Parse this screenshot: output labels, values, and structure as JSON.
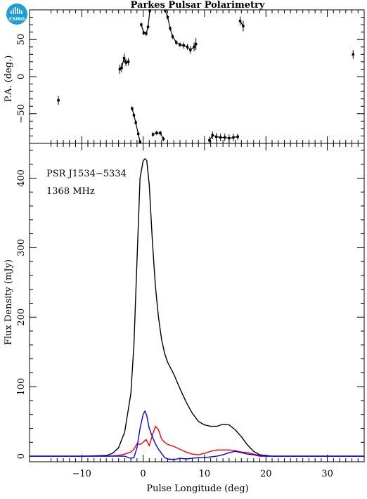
{
  "logo": {
    "text": "CSIRO",
    "color": "#1a9fd8"
  },
  "colors": {
    "total": "#000000",
    "linear": "#ff0000",
    "circular": "#0000ff"
  },
  "chart_data": [
    {
      "type": "scatter",
      "title": "Parkes Pulsar Polarimetry",
      "ylabel": "P.A. (deg.)",
      "xlim": [
        -18.5,
        36
      ],
      "ylim": [
        -90,
        90
      ],
      "xticks": [
        -10,
        0,
        10,
        20,
        30
      ],
      "yticks": [
        -50,
        0,
        50
      ],
      "grid": false,
      "points": [
        {
          "x": -13.8,
          "y": -32,
          "err": 6
        },
        {
          "x": -3.8,
          "y": 10,
          "err": 6
        },
        {
          "x": -3.5,
          "y": 12,
          "err": 6
        },
        {
          "x": -3.1,
          "y": 25,
          "err": 6
        },
        {
          "x": -2.8,
          "y": 19,
          "err": 5
        },
        {
          "x": -2.4,
          "y": 20,
          "err": 5
        },
        {
          "x": -1.8,
          "y": -43,
          "err": 3
        },
        {
          "x": -1.5,
          "y": -52,
          "err": 3
        },
        {
          "x": -1.2,
          "y": -62,
          "err": 3
        },
        {
          "x": -0.8,
          "y": -77,
          "err": 3
        },
        {
          "x": -0.5,
          "y": -88,
          "err": 3
        },
        {
          "x": -0.3,
          "y": 70,
          "err": 3
        },
        {
          "x": 0.1,
          "y": 59,
          "err": 3
        },
        {
          "x": 0.5,
          "y": 58,
          "err": 3
        },
        {
          "x": 0.8,
          "y": 67,
          "err": 3
        },
        {
          "x": 1.1,
          "y": 89,
          "err": 3
        },
        {
          "x": 1.6,
          "y": -78,
          "err": 3
        },
        {
          "x": 2.2,
          "y": -76,
          "err": 3
        },
        {
          "x": 2.8,
          "y": -76,
          "err": 3
        },
        {
          "x": 3.3,
          "y": -84,
          "err": 3
        },
        {
          "x": 3.6,
          "y": 89,
          "err": 3
        },
        {
          "x": 4.0,
          "y": 80,
          "err": 3
        },
        {
          "x": 4.4,
          "y": 65,
          "err": 3
        },
        {
          "x": 4.8,
          "y": 54,
          "err": 3
        },
        {
          "x": 5.4,
          "y": 46,
          "err": 3
        },
        {
          "x": 6.0,
          "y": 43,
          "err": 3
        },
        {
          "x": 6.6,
          "y": 42,
          "err": 4
        },
        {
          "x": 7.2,
          "y": 40,
          "err": 4
        },
        {
          "x": 7.7,
          "y": 36,
          "err": 5
        },
        {
          "x": 8.3,
          "y": 40,
          "err": 6
        },
        {
          "x": 8.6,
          "y": 44,
          "err": 8
        },
        {
          "x": 10.8,
          "y": -86,
          "err": 5
        },
        {
          "x": 11.3,
          "y": -79,
          "err": 5
        },
        {
          "x": 11.9,
          "y": -81,
          "err": 5
        },
        {
          "x": 12.6,
          "y": -82,
          "err": 5
        },
        {
          "x": 13.3,
          "y": -82,
          "err": 5
        },
        {
          "x": 14.0,
          "y": -83,
          "err": 5
        },
        {
          "x": 14.7,
          "y": -82,
          "err": 5
        },
        {
          "x": 15.4,
          "y": -81,
          "err": 4
        },
        {
          "x": 15.8,
          "y": 75,
          "err": 6
        },
        {
          "x": 16.3,
          "y": 68,
          "err": 7
        },
        {
          "x": 34.2,
          "y": 30,
          "err": 6
        }
      ]
    },
    {
      "type": "line",
      "xlabel": "Pulse Longitude (deg)",
      "ylabel": "Flux Density (mJy)",
      "xlim": [
        -18.5,
        36
      ],
      "ylim": [
        -8,
        450
      ],
      "xticks": [
        -10,
        0,
        10,
        20,
        30
      ],
      "yticks": [
        0,
        100,
        200,
        300,
        400
      ],
      "grid": false,
      "annotations": [
        "PSR J1534−5334",
        "1368 MHz"
      ],
      "series": [
        {
          "key": "total",
          "x": [
            -18.5,
            -10,
            -6,
            -5,
            -4,
            -3,
            -2,
            -1.5,
            -1,
            -0.5,
            0,
            0.3,
            0.6,
            1,
            1.5,
            2,
            2.5,
            3,
            3.5,
            4,
            5,
            6,
            7,
            8,
            9,
            10,
            11,
            12,
            13,
            14,
            15,
            16,
            17,
            18,
            19,
            20,
            21,
            25,
            30,
            36
          ],
          "y": [
            0,
            0,
            1,
            4,
            12,
            35,
            90,
            160,
            280,
            400,
            425,
            428,
            425,
            390,
            310,
            245,
            200,
            168,
            148,
            135,
            118,
            97,
            78,
            62,
            50,
            45,
            43,
            43,
            46,
            45,
            38,
            28,
            16,
            7,
            2,
            1,
            0,
            0,
            0,
            0
          ]
        },
        {
          "key": "linear",
          "x": [
            -18.5,
            -6,
            -4,
            -3,
            -2,
            -1.5,
            -1,
            -0.5,
            0,
            0.5,
            1,
            1.5,
            2,
            2.5,
            3,
            3.5,
            4,
            5,
            6,
            7,
            8,
            9,
            10,
            11,
            12,
            13,
            14,
            15,
            16,
            17,
            18,
            19,
            20,
            36
          ],
          "y": [
            0,
            0,
            1,
            3,
            6,
            10,
            18,
            17,
            20,
            24,
            15,
            30,
            43,
            38,
            25,
            20,
            17,
            14,
            10,
            6,
            3,
            2,
            4,
            7,
            9,
            9,
            9,
            8,
            6,
            5,
            3,
            1,
            0,
            0
          ]
        },
        {
          "key": "circular",
          "x": [
            -18.5,
            -6,
            -4,
            -3,
            -2,
            -1.5,
            -1,
            -0.5,
            0,
            0.3,
            0.6,
            1,
            1.5,
            2,
            2.5,
            3,
            3.5,
            4,
            5,
            6,
            7,
            8,
            9,
            10,
            11,
            12,
            13,
            14,
            15,
            16,
            17,
            18,
            19,
            20,
            36
          ],
          "y": [
            0,
            0,
            0,
            0,
            -3,
            -2,
            12,
            40,
            60,
            65,
            58,
            40,
            28,
            18,
            10,
            4,
            -2,
            -4,
            -5,
            -3,
            -4,
            -3,
            -2,
            -2,
            -1,
            0,
            2,
            5,
            7,
            5,
            3,
            2,
            0,
            0,
            0
          ]
        }
      ]
    }
  ]
}
